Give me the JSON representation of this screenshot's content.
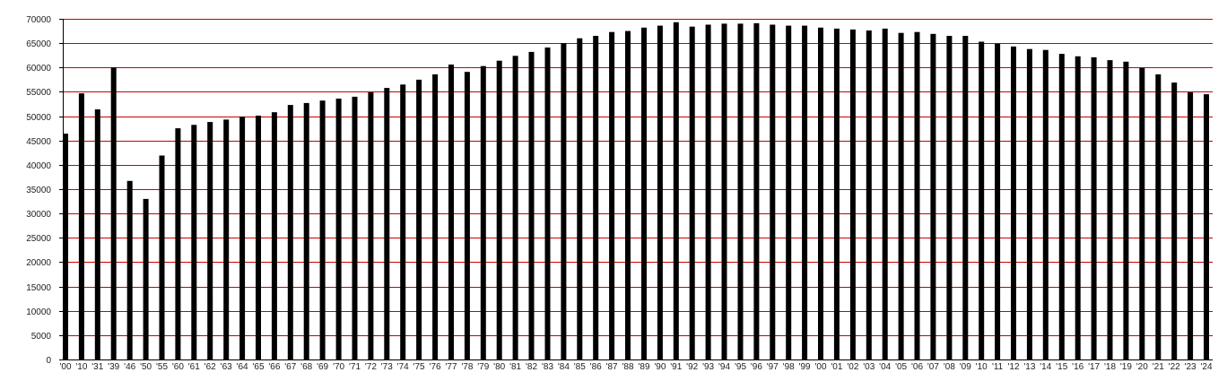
{
  "chart_data": {
    "type": "bar",
    "title": "",
    "xlabel": "",
    "ylabel": "",
    "ylim": [
      0,
      70000
    ],
    "yticks": [
      0,
      5000,
      10000,
      15000,
      20000,
      25000,
      30000,
      35000,
      40000,
      45000,
      50000,
      55000,
      60000,
      65000,
      70000
    ],
    "grid": true,
    "legend": "none",
    "colors": {
      "bar": "#000000",
      "grid": "#cc0000",
      "axis": "#000000"
    },
    "categories": [
      "'00",
      "'10",
      "'31",
      "'39",
      "'46",
      "'50",
      "'55",
      "'60",
      "'61",
      "'62",
      "'63",
      "'64",
      "'65",
      "'66",
      "'67",
      "'68",
      "'69",
      "'70",
      "'71",
      "'72",
      "'73",
      "'74",
      "'75",
      "'76",
      "'77",
      "'78",
      "'79",
      "'80",
      "'81",
      "'82",
      "'83",
      "'84",
      "'85",
      "'86",
      "'87",
      "'88",
      "'89",
      "'90",
      "'91",
      "'92",
      "'93",
      "'94",
      "'95",
      "'96",
      "'97",
      "'98",
      "'99",
      "'00",
      "'01",
      "'02",
      "'03",
      "'04",
      "'05",
      "'06",
      "'07",
      "'08",
      "'09",
      "'10",
      "'11",
      "'12",
      "'13",
      "'14",
      "'15",
      "'16",
      "'17",
      "'18",
      "'19",
      "'20",
      "'21",
      "'22",
      "'23",
      "'24"
    ],
    "values": [
      46400,
      54700,
      51400,
      60000,
      36700,
      33000,
      41900,
      47500,
      48200,
      48800,
      49300,
      49900,
      50100,
      50800,
      52300,
      52700,
      53200,
      53600,
      54000,
      54900,
      55800,
      56500,
      57500,
      58600,
      60600,
      59100,
      60300,
      61400,
      62400,
      63200,
      64100,
      65000,
      66000,
      66500,
      67300,
      67500,
      68200,
      68600,
      69300,
      68400,
      68800,
      69000,
      69000,
      69100,
      68800,
      68600,
      68600,
      68200,
      68000,
      67800,
      67600,
      68000,
      67100,
      67300,
      66900,
      66500,
      66500,
      65300,
      64900,
      64300,
      63800,
      63600,
      62800,
      62300,
      62100,
      61500,
      61200,
      59900,
      58600,
      56900,
      54900,
      54500
    ]
  }
}
